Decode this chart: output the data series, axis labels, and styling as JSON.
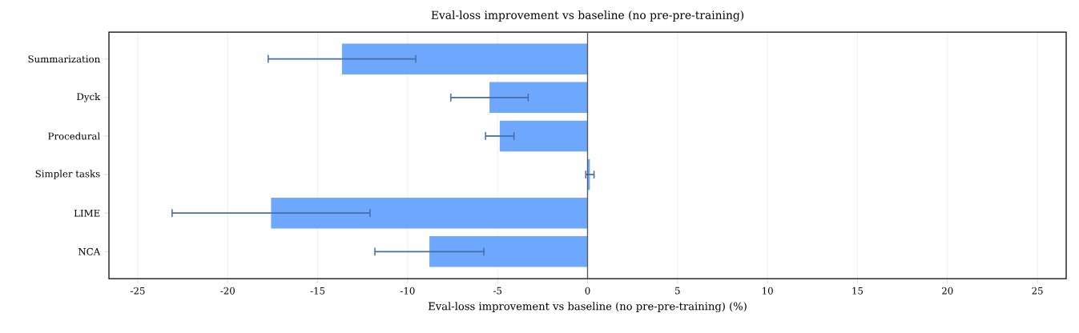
{
  "chart_data": {
    "type": "bar",
    "orientation": "horizontal",
    "title": "Eval-loss improvement vs baseline (no pre-pre-training)",
    "xlabel": "Eval-loss improvement vs baseline (no pre-pre-training) (%)",
    "categories": [
      "Summarization",
      "Dyck",
      "Procedural",
      "Simpler tasks",
      "LIME",
      "NCA"
    ],
    "values": [
      -13.65,
      -5.45,
      -4.88,
      0.13,
      -17.59,
      -8.79
    ],
    "errors": [
      4.1,
      2.15,
      0.79,
      0.23,
      5.5,
      3.03
    ],
    "color": "#6ea8fe",
    "xlim": [
      -26.6,
      26.6
    ],
    "xticks": [
      -25,
      -20,
      -15,
      -10,
      -5,
      0,
      5,
      10,
      15,
      20,
      25
    ],
    "grid": "x",
    "ref_lines": [
      {
        "axis": "x",
        "value": 0,
        "color": "#555555"
      }
    ]
  }
}
